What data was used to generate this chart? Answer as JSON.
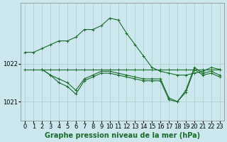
{
  "title": "Graphe pression niveau de la mer (hPa)",
  "background_color": "#cce8ee",
  "grid_color": "#aacccc",
  "line_color": "#1a6b2a",
  "marker_color": "#1a6b2a",
  "tick_fontsize": 6,
  "title_fontsize": 7,
  "series": [
    {
      "x": [
        0,
        1,
        2,
        3,
        4,
        5,
        6,
        7,
        8,
        9,
        10,
        11,
        12,
        13,
        14,
        15,
        16,
        17,
        18,
        19,
        20,
        21,
        22,
        23
      ],
      "y": [
        1022.3,
        1022.3,
        1022.4,
        1022.5,
        1022.6,
        1022.6,
        1022.7,
        1022.9,
        1022.9,
        1023.0,
        1023.2,
        1023.15,
        1022.8,
        1022.5,
        1022.2,
        1021.9,
        1021.8,
        1021.75,
        1021.7,
        1021.7,
        1021.75,
        1021.8,
        1021.9,
        1021.85
      ]
    },
    {
      "x": [
        0,
        1,
        2,
        3,
        4,
        5,
        6,
        7,
        8,
        9,
        10,
        11,
        12,
        13,
        14,
        15,
        16,
        17,
        18,
        19,
        20,
        21,
        22,
        23
      ],
      "y": [
        1021.85,
        1021.85,
        1021.85,
        1021.85,
        1021.85,
        1021.85,
        1021.85,
        1021.85,
        1021.85,
        1021.85,
        1021.85,
        1021.85,
        1021.85,
        1021.85,
        1021.85,
        1021.85,
        1021.85,
        1021.85,
        1021.85,
        1021.85,
        1021.85,
        1021.85,
        1021.85,
        1021.85
      ]
    },
    {
      "x": [
        2,
        3,
        4,
        5,
        6,
        7,
        8,
        9,
        10,
        11,
        12,
        13,
        14,
        15,
        16,
        17,
        18,
        19,
        20,
        21,
        22,
        23
      ],
      "y": [
        1021.85,
        1021.7,
        1021.6,
        1021.5,
        1021.3,
        1021.6,
        1021.7,
        1021.8,
        1021.8,
        1021.75,
        1021.7,
        1021.65,
        1021.6,
        1021.6,
        1021.6,
        1021.1,
        1021.0,
        1021.3,
        1021.9,
        1021.75,
        1021.8,
        1021.7
      ]
    },
    {
      "x": [
        2,
        3,
        4,
        5,
        6,
        7,
        8,
        9,
        10,
        11,
        12,
        13,
        14,
        15,
        16,
        17,
        18,
        19,
        20,
        21,
        22,
        23
      ],
      "y": [
        1021.85,
        1021.7,
        1021.5,
        1021.4,
        1021.2,
        1021.55,
        1021.65,
        1021.75,
        1021.75,
        1021.7,
        1021.65,
        1021.6,
        1021.55,
        1021.55,
        1021.55,
        1021.05,
        1021.0,
        1021.25,
        1021.85,
        1021.7,
        1021.75,
        1021.65
      ]
    }
  ],
  "ylim": [
    1020.5,
    1023.6
  ],
  "yticks": [
    1021,
    1022
  ],
  "xlim": [
    -0.5,
    23.5
  ],
  "xticks": [
    0,
    1,
    2,
    3,
    4,
    5,
    6,
    7,
    8,
    9,
    10,
    11,
    12,
    13,
    14,
    15,
    16,
    17,
    18,
    19,
    20,
    21,
    22,
    23
  ]
}
